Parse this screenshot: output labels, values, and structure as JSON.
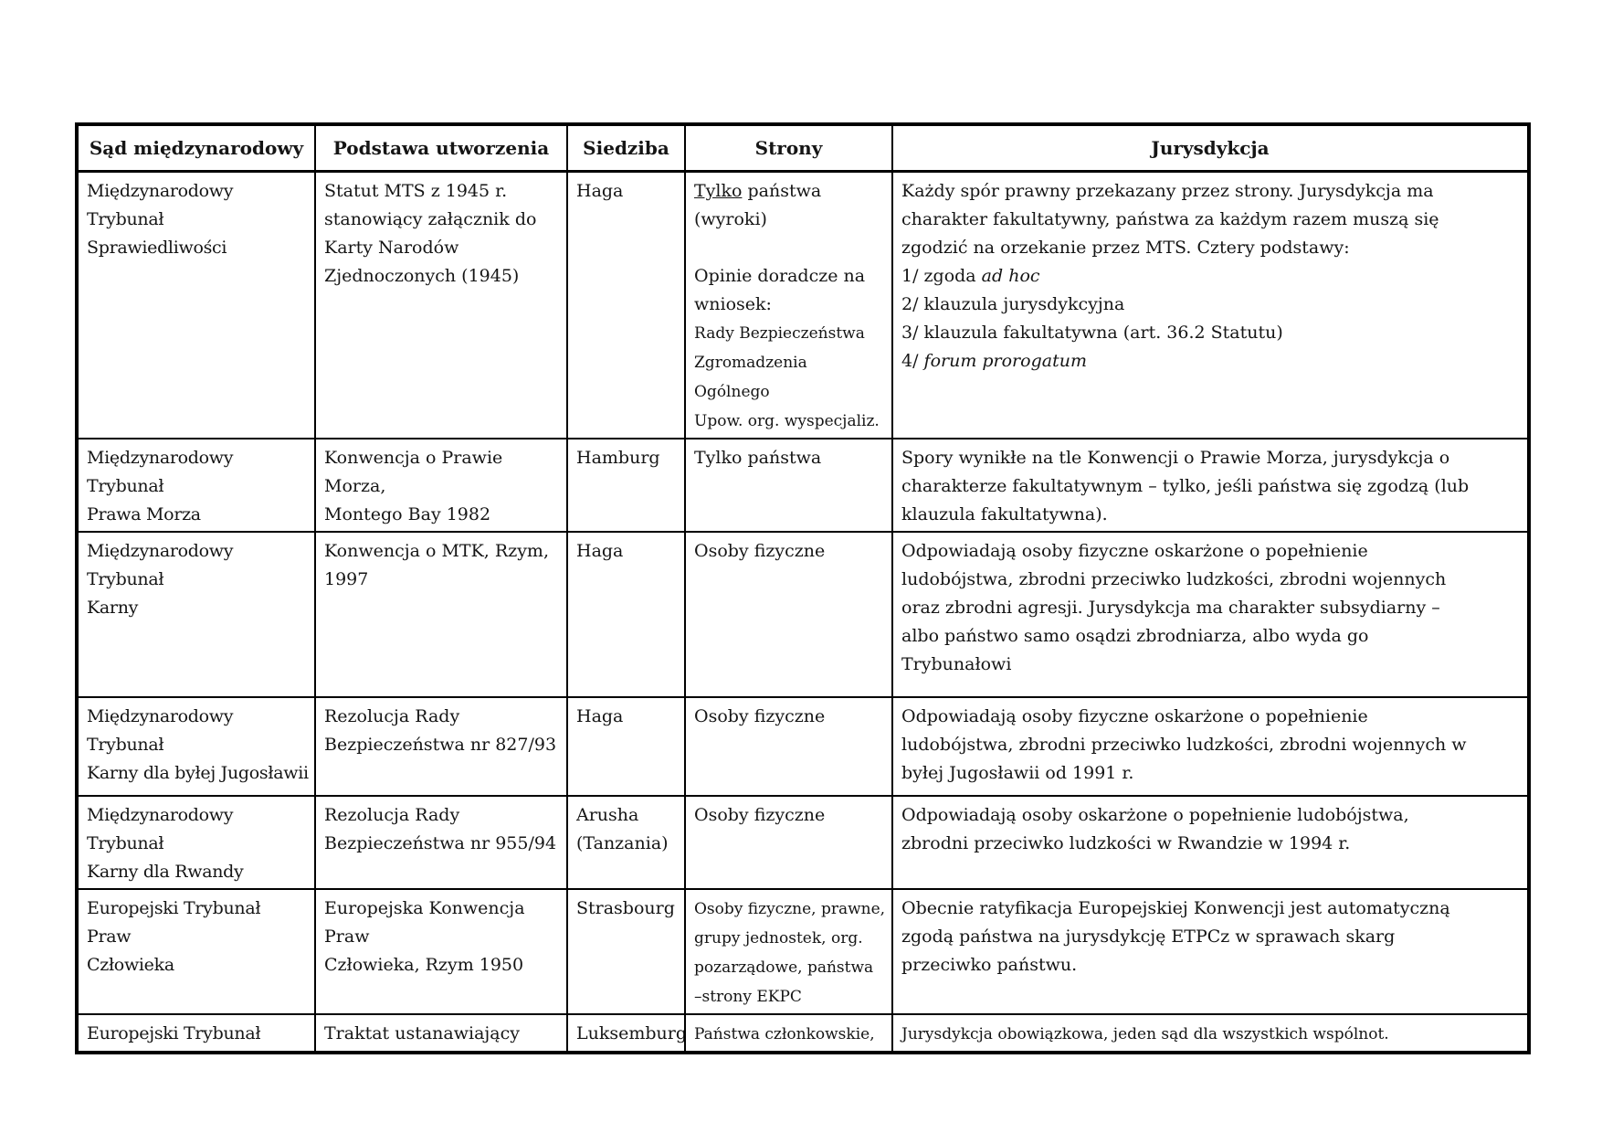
{
  "table": {
    "headers": [
      "Sąd międzynarodowy",
      "Podstawa utworzenia",
      "Siedziba",
      "Strony",
      "Jurysdykcja"
    ],
    "rows": [
      {
        "court": [
          {
            "t": "Międzynarodowy Trybunał\nSprawiedliwości"
          }
        ],
        "basis": [
          {
            "t": "Statut MTS z 1945 r.\nstanowiący załącznik do\nKarty Narodów\nZjednoczonych (1945)"
          }
        ],
        "seat": [
          {
            "t": "Haga"
          }
        ],
        "parties": [
          {
            "t": "Tylko",
            "u": true
          },
          {
            "t": " państwa\n(wyroki)\n\nOpinie doradcze na\nwniosek:\n"
          },
          {
            "t": "Rady Bezpieczeństwa\nZgromadzenia Ogólnego\nUpow. org. wyspecjaliz.",
            "small": true
          }
        ],
        "jurisdiction": [
          {
            "t": "Każdy spór prawny przekazany przez strony. Jurysdykcja ma\ncharakter fakultatywny, państwa za każdym razem muszą się\nzgodzić na orzekanie przez MTS. Cztery podstawy:\n1/ zgoda "
          },
          {
            "t": "ad hoc",
            "i": true
          },
          {
            "t": "\n2/ klauzula jurysdykcyjna\n3/ klauzula fakultatywna (art. 36.2 Statutu)\n4/ "
          },
          {
            "t": "forum prorogatum",
            "i": true
          }
        ]
      },
      {
        "court": [
          {
            "t": "Międzynarodowy Trybunał\nPrawa Morza"
          }
        ],
        "basis": [
          {
            "t": "Konwencja o Prawie Morza,\nMontego Bay 1982"
          }
        ],
        "seat": [
          {
            "t": "Hamburg"
          }
        ],
        "parties": [
          {
            "t": "Tylko państwa"
          }
        ],
        "jurisdiction": [
          {
            "t": "Spory wynikłe na tle Konwencji o Prawie Morza, jurysdykcja o\ncharakterze fakultatywnym – tylko, jeśli państwa się zgodzą (lub\nklauzula fakultatywna)."
          }
        ]
      },
      {
        "court": [
          {
            "t": "Międzynarodowy Trybunał\nKarny"
          }
        ],
        "basis": [
          {
            "t": "Konwencja o MTK, Rzym,\n1997"
          }
        ],
        "seat": [
          {
            "t": "Haga"
          }
        ],
        "parties": [
          {
            "t": "Osoby fizyczne"
          }
        ],
        "jurisdiction": [
          {
            "t": "Odpowiadają osoby fizyczne oskarżone o popełnienie\nludobójstwa, zbrodni przeciwko ludzkości, zbrodni wojennych\noraz zbrodni agresji. Jurysdykcja ma charakter subsydiarny –\nalbo państwo samo osądzi zbrodniarza, albo wyda go\nTrybunałowi"
          }
        ]
      },
      {
        "court": [
          {
            "t": "Międzynarodowy Trybunał\nKarny dla byłej Jugosławii"
          }
        ],
        "basis": [
          {
            "t": "Rezolucja Rady\nBezpieczeństwa nr 827/93"
          }
        ],
        "seat": [
          {
            "t": "Haga"
          }
        ],
        "parties": [
          {
            "t": "Osoby fizyczne"
          }
        ],
        "jurisdiction": [
          {
            "t": "Odpowiadają osoby fizyczne oskarżone o popełnienie\nludobójstwa, zbrodni przeciwko ludzkości, zbrodni wojennych w\nbyłej Jugosławii od 1991 r."
          }
        ]
      },
      {
        "court": [
          {
            "t": "Międzynarodowy Trybunał\nKarny dla Rwandy"
          }
        ],
        "basis": [
          {
            "t": "Rezolucja Rady\nBezpieczeństwa nr 955/94"
          }
        ],
        "seat": [
          {
            "t": "Arusha\n(Tanzania)"
          }
        ],
        "parties": [
          {
            "t": "Osoby fizyczne"
          }
        ],
        "jurisdiction": [
          {
            "t": "Odpowiadają osoby oskarżone o popełnienie ludobójstwa,\nzbrodni przeciwko ludzkości w Rwandzie w 1994 r."
          }
        ]
      },
      {
        "court": [
          {
            "t": "Europejski Trybunał Praw\nCzłowieka"
          }
        ],
        "basis": [
          {
            "t": "Europejska Konwencja Praw\nCzłowieka, Rzym 1950"
          }
        ],
        "seat": [
          {
            "t": "Strasbourg"
          }
        ],
        "parties": [
          {
            "t": "Osoby fizyczne, prawne,\ngrupy jednostek, org.\npozarządowe, państwa\n–strony EKPC",
            "small": true
          }
        ],
        "jurisdiction": [
          {
            "t": "Obecnie ratyfikacja Europejskiej Konwencji jest automatyczną\nzgodą państwa na jurysdykcję ETPCz w sprawach skarg\nprzeciwko państwu."
          }
        ]
      },
      {
        "court": [
          {
            "t": "Europejski Trybunał"
          }
        ],
        "basis": [
          {
            "t": "Traktat ustanawiający"
          }
        ],
        "seat": [
          {
            "t": "Luksemburg"
          }
        ],
        "parties": [
          {
            "t": "Państwa członkowskie,",
            "small": true
          }
        ],
        "jurisdiction": [
          {
            "t": "Jurysdykcja obowiązkowa, jeden sąd dla wszystkich wspólnot.",
            "small": true
          }
        ]
      }
    ]
  }
}
